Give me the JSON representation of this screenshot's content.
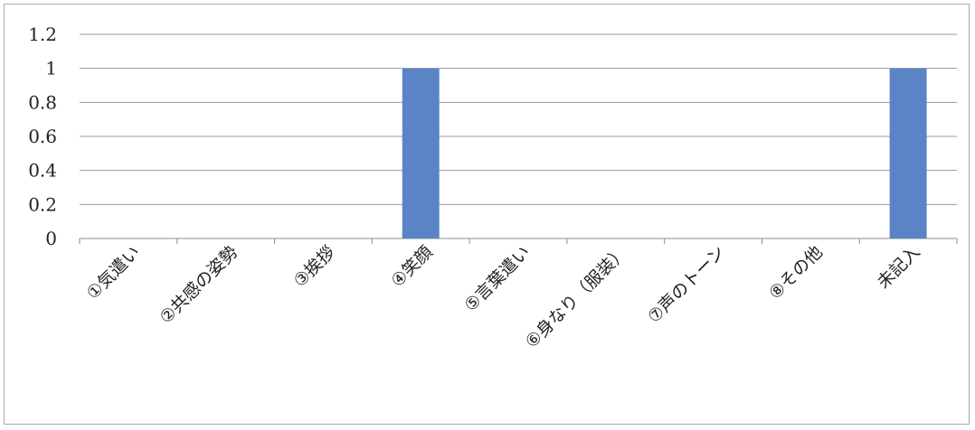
{
  "chart_data": {
    "type": "bar",
    "categories": [
      "①気遣い",
      "②共感の姿勢",
      "③挨拶",
      "④笑顔",
      "⑤言葉遣い",
      "⑥身なり（服装）",
      "⑦声のトーン",
      "⑧その他",
      "未記入"
    ],
    "values": [
      0,
      0,
      0,
      1,
      0,
      0,
      0,
      0,
      1
    ],
    "ylim": [
      0,
      1.2
    ],
    "yticks": [
      "0",
      "0.2",
      "0.4",
      "0.6",
      "0.8",
      "1",
      "1.2"
    ],
    "grid": true,
    "legend": "none",
    "colors": {
      "bar": "#5b84c6",
      "grid": "#9a9a9a",
      "axis": "#8c8c8c",
      "frame": "#a9a9a9"
    }
  }
}
